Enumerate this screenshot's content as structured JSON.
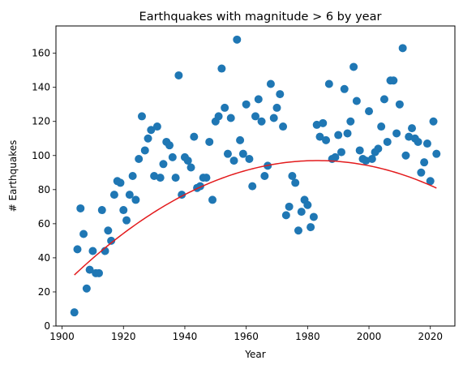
{
  "chart_data": {
    "type": "scatter",
    "title": "Earthquakes with magnitude > 6 by year",
    "xlabel": "Year",
    "ylabel": "# Earthquakes",
    "xlim": [
      1898,
      2028
    ],
    "ylim": [
      0,
      176
    ],
    "xticks": [
      1900,
      1920,
      1940,
      1960,
      1980,
      2000,
      2020
    ],
    "yticks": [
      0,
      20,
      40,
      60,
      80,
      100,
      120,
      140,
      160
    ],
    "grid": false,
    "point_color": "#1f77b4",
    "fit_color": "#e31a1c",
    "series": [
      {
        "kind": "scatter",
        "x": [
          1904,
          1905,
          1906,
          1907,
          1908,
          1909,
          1910,
          1911,
          1912,
          1913,
          1914,
          1915,
          1916,
          1917,
          1918,
          1919,
          1920,
          1921,
          1922,
          1923,
          1924,
          1925,
          1926,
          1927,
          1928,
          1929,
          1930,
          1931,
          1932,
          1933,
          1934,
          1935,
          1936,
          1937,
          1938,
          1939,
          1940,
          1941,
          1942,
          1943,
          1944,
          1945,
          1946,
          1947,
          1948,
          1949,
          1950,
          1951,
          1952,
          1953,
          1954,
          1955,
          1956,
          1957,
          1958,
          1959,
          1960,
          1961,
          1962,
          1963,
          1964,
          1965,
          1966,
          1967,
          1968,
          1969,
          1970,
          1971,
          1972,
          1973,
          1974,
          1975,
          1976,
          1977,
          1978,
          1979,
          1980,
          1981,
          1982,
          1983,
          1984,
          1985,
          1986,
          1987,
          1988,
          1989,
          1990,
          1991,
          1992,
          1993,
          1994,
          1995,
          1996,
          1997,
          1998,
          1999,
          2000,
          2001,
          2002,
          2003,
          2004,
          2005,
          2006,
          2007,
          2008,
          2009,
          2010,
          2011,
          2012,
          2013,
          2014,
          2015,
          2016,
          2017,
          2018,
          2019,
          2020,
          2021,
          2022
        ],
        "y": [
          8,
          45,
          69,
          54,
          22,
          33,
          44,
          31,
          31,
          68,
          44,
          56,
          50,
          77,
          85,
          84,
          68,
          62,
          77,
          88,
          74,
          98,
          123,
          103,
          110,
          115,
          88,
          117,
          87,
          95,
          108,
          106,
          99,
          87,
          147,
          77,
          99,
          97,
          93,
          111,
          81,
          82,
          87,
          87,
          108,
          74,
          120,
          123,
          151,
          128,
          101,
          122,
          97,
          168,
          109,
          101,
          130,
          98,
          82,
          123,
          133,
          120,
          88,
          94,
          142,
          122,
          128,
          136,
          117,
          65,
          70,
          88,
          84,
          56,
          67,
          74,
          71,
          58,
          64,
          118,
          111,
          119,
          109,
          142,
          98,
          99,
          112,
          102,
          139,
          113,
          120,
          152,
          132,
          103,
          98,
          97,
          126,
          98,
          102,
          104,
          117,
          133,
          108,
          144,
          144,
          113,
          130,
          163,
          100,
          111,
          116,
          110,
          108,
          90,
          96,
          107,
          85,
          120,
          101
        ]
      },
      {
        "kind": "line",
        "fit_coefficients": [
          -0.0107,
          42.44,
          -41986
        ]
      }
    ]
  }
}
